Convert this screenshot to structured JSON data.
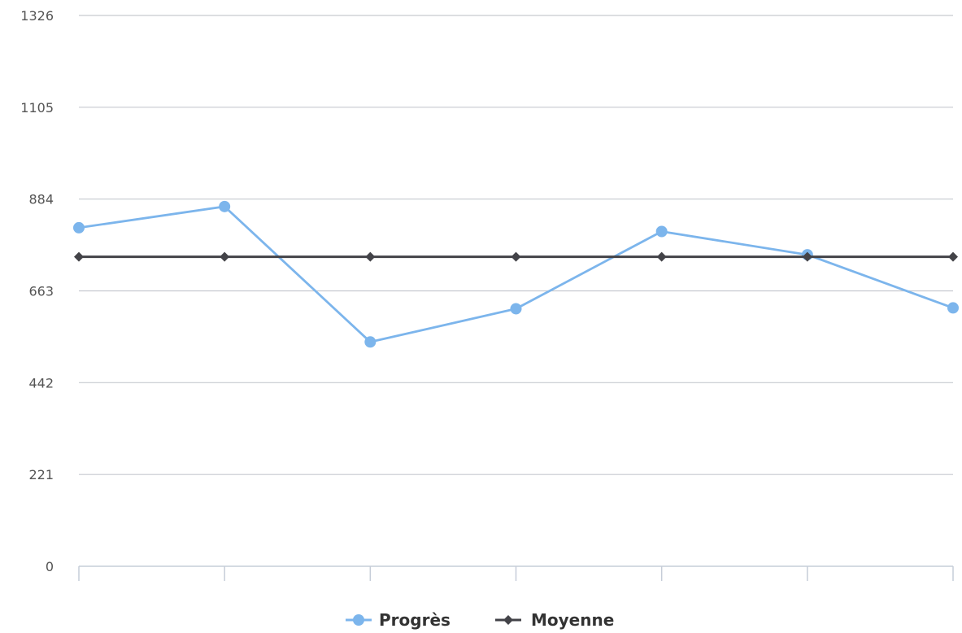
{
  "chart_data": {
    "type": "line",
    "x": [
      1,
      2,
      3,
      4,
      5,
      6,
      7
    ],
    "ylim": [
      0,
      1326
    ],
    "yticks": [
      0,
      221,
      442,
      663,
      884,
      1105,
      1326
    ],
    "xlabels_shown": false,
    "grid": "horizontal",
    "legend_position": "bottom-center",
    "series": [
      {
        "name": "Progrès",
        "values": [
          815,
          866,
          540,
          620,
          806,
          750,
          622
        ],
        "color": "#7cb5ec",
        "marker": "circle"
      },
      {
        "name": "Moyenne",
        "values": [
          745,
          745,
          745,
          745,
          745,
          745,
          745
        ],
        "color": "#434348",
        "marker": "diamond"
      }
    ]
  }
}
